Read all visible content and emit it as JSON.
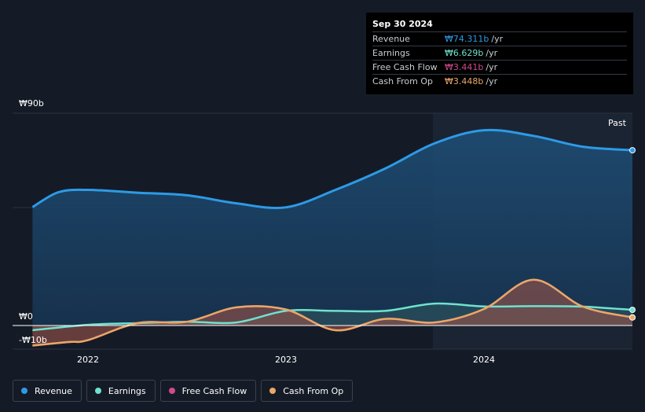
{
  "tooltip": {
    "date": "Sep 30 2024",
    "rows": [
      {
        "label": "Revenue",
        "value": "₩74.311b",
        "unit": "/yr",
        "color": "#2d9ae6"
      },
      {
        "label": "Earnings",
        "value": "₩6.629b",
        "unit": "/yr",
        "color": "#6ee2cf"
      },
      {
        "label": "Free Cash Flow",
        "value": "₩3.441b",
        "unit": "/yr",
        "color": "#cf4b8a"
      },
      {
        "label": "Cash From Op",
        "value": "₩3.448b",
        "unit": "/yr",
        "color": "#e8a867"
      }
    ]
  },
  "past_label": "Past",
  "legend": [
    {
      "label": "Revenue",
      "color": "#2d9ae6"
    },
    {
      "label": "Earnings",
      "color": "#6ee2cf"
    },
    {
      "label": "Free Cash Flow",
      "color": "#cf4b8a"
    },
    {
      "label": "Cash From Op",
      "color": "#e8a867"
    }
  ],
  "chart_data": {
    "type": "line",
    "x_ticks": [
      "2022",
      "2023",
      "2024"
    ],
    "y_ticks": [
      "₩90b",
      "₩0",
      "-₩10b"
    ],
    "ylim": [
      -10,
      90
    ],
    "xlim": [
      2021.72,
      2024.75
    ],
    "series": [
      {
        "name": "Revenue",
        "color": "#2d9ae6",
        "points": [
          [
            2021.72,
            50.2
          ],
          [
            2021.85,
            56.5
          ],
          [
            2022.0,
            57.5
          ],
          [
            2022.25,
            56.3
          ],
          [
            2022.5,
            55.2
          ],
          [
            2022.75,
            51.8
          ],
          [
            2023.0,
            50.1
          ],
          [
            2023.25,
            57.5
          ],
          [
            2023.5,
            66.5
          ],
          [
            2023.75,
            77.2
          ],
          [
            2024.0,
            82.8
          ],
          [
            2024.25,
            80.4
          ],
          [
            2024.5,
            75.8
          ],
          [
            2024.75,
            74.311
          ]
        ]
      },
      {
        "name": "Earnings",
        "color": "#6ee2cf",
        "points": [
          [
            2021.72,
            -2.0
          ],
          [
            2022.0,
            0.3
          ],
          [
            2022.25,
            1.0
          ],
          [
            2022.5,
            1.6
          ],
          [
            2022.75,
            1.3
          ],
          [
            2023.0,
            6.2
          ],
          [
            2023.25,
            6.2
          ],
          [
            2023.5,
            6.2
          ],
          [
            2023.75,
            9.3
          ],
          [
            2024.0,
            8.1
          ],
          [
            2024.25,
            8.2
          ],
          [
            2024.5,
            8.0
          ],
          [
            2024.75,
            6.629
          ]
        ]
      },
      {
        "name": "Free Cash Flow",
        "color": "#cf4b8a",
        "points": [
          [
            2021.72,
            -8.5
          ],
          [
            2021.9,
            -7.0
          ],
          [
            2022.0,
            -6.2
          ],
          [
            2022.25,
            1.0
          ],
          [
            2022.5,
            1.6
          ],
          [
            2022.75,
            7.7
          ],
          [
            2023.0,
            6.8
          ],
          [
            2023.25,
            -2.0
          ],
          [
            2023.5,
            2.8
          ],
          [
            2023.75,
            1.3
          ],
          [
            2024.0,
            7.0
          ],
          [
            2024.25,
            19.4
          ],
          [
            2024.5,
            8.0
          ],
          [
            2024.75,
            3.441
          ]
        ]
      },
      {
        "name": "Cash From Op",
        "color": "#e8a867",
        "points": [
          [
            2021.72,
            -8.5
          ],
          [
            2021.9,
            -7.0
          ],
          [
            2022.0,
            -6.2
          ],
          [
            2022.25,
            1.0
          ],
          [
            2022.5,
            1.6
          ],
          [
            2022.75,
            7.7
          ],
          [
            2023.0,
            6.8
          ],
          [
            2023.25,
            -2.0
          ],
          [
            2023.5,
            2.8
          ],
          [
            2023.75,
            1.3
          ],
          [
            2024.0,
            7.0
          ],
          [
            2024.25,
            19.4
          ],
          [
            2024.5,
            8.0
          ],
          [
            2024.75,
            3.448
          ]
        ]
      }
    ]
  }
}
